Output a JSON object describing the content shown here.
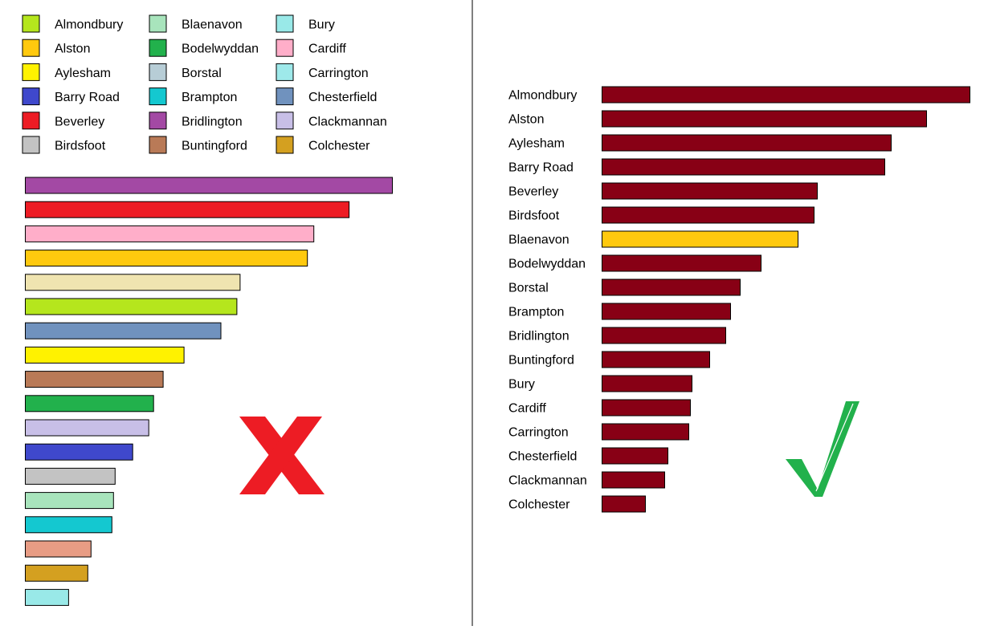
{
  "chart_data": [
    {
      "type": "bar",
      "orientation": "horizontal",
      "legend_position": "top",
      "grid": false,
      "categories": [
        "Almondbury",
        "Alston",
        "Aylesham",
        "Barry Road",
        "Beverley",
        "Birdsfoot",
        "Blaenavon",
        "Bodelwyddan",
        "Borstal",
        "Brampton",
        "Bridlington",
        "Buntingford",
        "Bury",
        "Cardiff",
        "Carrington",
        "Chesterfield",
        "Clackmannan",
        "Colchester"
      ],
      "colors": [
        "#b5e61d",
        "#ffc90e",
        "#fff200",
        "#3f48cc",
        "#ed1c24",
        "#c3c3c3",
        "#a8e4bc",
        "#22b14c",
        "#b7cdd6",
        "#14c8d0",
        "#a349a4",
        "#b97a57",
        "#99e9e8",
        "#ffaec9",
        "#9ee9ea",
        "#7092be",
        "#c8bfe7",
        "#d4a020"
      ],
      "bars": [
        {
          "value": 229,
          "color": "#a349a4"
        },
        {
          "value": 202,
          "color": "#ed1c24"
        },
        {
          "value": 180,
          "color": "#ffaec9"
        },
        {
          "value": 176,
          "color": "#ffc90e"
        },
        {
          "value": 134,
          "color": "#efe4b0"
        },
        {
          "value": 132,
          "color": "#b5e61d"
        },
        {
          "value": 122,
          "color": "#7092be"
        },
        {
          "value": 99,
          "color": "#fff200"
        },
        {
          "value": 86,
          "color": "#b97a57"
        },
        {
          "value": 80,
          "color": "#22b14c"
        },
        {
          "value": 77,
          "color": "#c8bfe7"
        },
        {
          "value": 67,
          "color": "#3f48cc"
        },
        {
          "value": 56,
          "color": "#c3c3c3"
        },
        {
          "value": 55,
          "color": "#a8e4bc"
        },
        {
          "value": 54,
          "color": "#14c8d0"
        },
        {
          "value": 41,
          "color": "#e89c84"
        },
        {
          "value": 39,
          "color": "#d4a020"
        },
        {
          "value": 27,
          "color": "#99e9e8"
        }
      ],
      "mark": {
        "icon": "cross-icon",
        "color": "#ed1c24"
      }
    },
    {
      "type": "bar",
      "orientation": "horizontal",
      "grid": false,
      "categories": [
        "Almondbury",
        "Alston",
        "Aylesham",
        "Barry Road",
        "Beverley",
        "Birdsfoot",
        "Blaenavon",
        "Bodelwyddan",
        "Borstal",
        "Brampton",
        "Bridlington",
        "Buntingford",
        "Bury",
        "Cardiff",
        "Carrington",
        "Chesterfield",
        "Clackmannan",
        "Colchester"
      ],
      "values": [
        229,
        202,
        180,
        176,
        134,
        132,
        122,
        99,
        86,
        80,
        77,
        67,
        56,
        55,
        54,
        41,
        39,
        27
      ],
      "bar_color": "#880015",
      "highlight_color": "#ffc90e",
      "highlight_category": "Blaenavon",
      "mark": {
        "icon": "check-icon",
        "color": "#22b14c"
      }
    }
  ]
}
